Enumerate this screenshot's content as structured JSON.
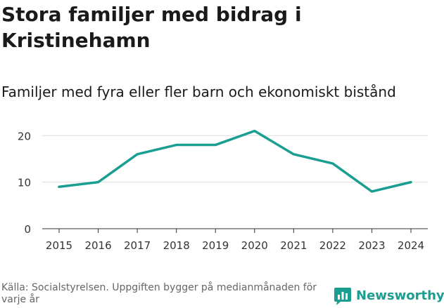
{
  "chart_data": {
    "type": "line",
    "title": "Stora familjer med bidrag i Kristinehamn",
    "subtitle": "Familjer med fyra eller fler barn och ekonomiskt bistånd",
    "x": [
      "2015",
      "2016",
      "2017",
      "2018",
      "2019",
      "2020",
      "2021",
      "2022",
      "2023",
      "2024"
    ],
    "series": [
      {
        "name": "Familjer",
        "values": [
          9,
          10,
          16,
          18,
          18,
          21,
          16,
          14,
          8,
          10
        ]
      }
    ],
    "yticks": [
      "0",
      "10",
      "20"
    ],
    "ylim": [
      0,
      22
    ],
    "xlabel": "",
    "ylabel": "",
    "grid": true
  },
  "footer": {
    "source": "Källa: Socialstyrelsen. Uppgiften bygger på medianmånaden för varje år"
  },
  "brand": {
    "name": "Newsworthy"
  },
  "colors": {
    "line": "#1a9e91",
    "grid": "#dddddd",
    "axis": "#333333",
    "brand": "#1a9e91"
  }
}
